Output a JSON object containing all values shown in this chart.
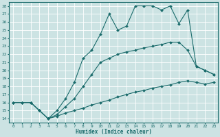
{
  "xlabel": "Humidex (Indice chaleur)",
  "bg_color": "#cce3e3",
  "grid_color": "#b0d0d0",
  "line_color": "#1a6b6b",
  "xlim": [
    -0.5,
    23.5
  ],
  "ylim": [
    13.5,
    28.5
  ],
  "xticks": [
    0,
    1,
    2,
    3,
    4,
    5,
    6,
    7,
    8,
    9,
    10,
    11,
    12,
    13,
    14,
    15,
    16,
    17,
    18,
    19,
    20,
    21,
    22,
    23
  ],
  "yticks": [
    14,
    15,
    16,
    17,
    18,
    19,
    20,
    21,
    22,
    23,
    24,
    25,
    26,
    27,
    28
  ],
  "line1_x": [
    0,
    1,
    2,
    3,
    4,
    5,
    6,
    7,
    8,
    9,
    10,
    11,
    12,
    13,
    14,
    15,
    16,
    17,
    18,
    19,
    20,
    21,
    22,
    23
  ],
  "line1_y": [
    16,
    16,
    16,
    15,
    14,
    14.3,
    14.7,
    15,
    15.3,
    15.7,
    16,
    16.3,
    16.7,
    17,
    17.3,
    17.5,
    17.8,
    18,
    18.2,
    18.5,
    18.7,
    18.5,
    18.3,
    18.5
  ],
  "line2_x": [
    0,
    1,
    2,
    3,
    4,
    5,
    6,
    7,
    8,
    9,
    10,
    11,
    12,
    13,
    14,
    15,
    16,
    17,
    18,
    19,
    20,
    21,
    22,
    23
  ],
  "line2_y": [
    16,
    16,
    16,
    15,
    14,
    14.5,
    15.5,
    16.5,
    18,
    19.5,
    21,
    21.5,
    22,
    22.3,
    22.5,
    22.8,
    23,
    23.2,
    23.5,
    23.5,
    22.5,
    20.5,
    20,
    19.5
  ],
  "line3_x": [
    0,
    1,
    2,
    3,
    4,
    5,
    6,
    7,
    8,
    9,
    10,
    11,
    12,
    13,
    14,
    15,
    16,
    17,
    18,
    19,
    20,
    21,
    22,
    23
  ],
  "line3_y": [
    16,
    16,
    16,
    15,
    14,
    15,
    16.5,
    18.5,
    21.5,
    22.5,
    24.5,
    27,
    25,
    25.5,
    28,
    28,
    28,
    27.5,
    28,
    25.8,
    27.5,
    20.5,
    20,
    19.5
  ]
}
